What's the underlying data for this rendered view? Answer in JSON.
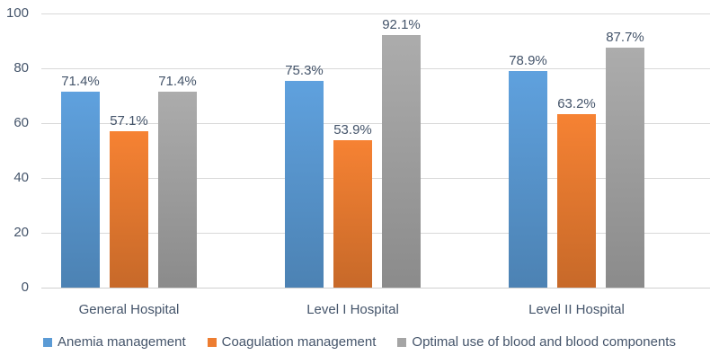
{
  "chart_data": {
    "type": "bar",
    "title": "",
    "categories": [
      "General Hospital",
      "Level I Hospital",
      "Level II Hospital"
    ],
    "series": [
      {
        "name": "Anemia management",
        "color": "#5B9BD5",
        "values": [
          71.4,
          75.3,
          78.9
        ],
        "labels": [
          "71.4%",
          "75.3%",
          "78.9%"
        ]
      },
      {
        "name": "Coagulation management",
        "color": "#ED7D31",
        "values": [
          57.1,
          53.9,
          63.2
        ],
        "labels": [
          "57.1%",
          "53.9%",
          "63.2%"
        ]
      },
      {
        "name": "Optimal use of blood and blood components",
        "color": "#A5A5A5",
        "values": [
          71.4,
          92.1,
          87.7
        ],
        "labels": [
          "71.4%",
          "92.1%",
          "87.7%"
        ]
      }
    ],
    "y_ticks": [
      0,
      20,
      40,
      60,
      80,
      100
    ],
    "ylim": [
      0,
      100
    ],
    "grid": true,
    "legend_position": "bottom",
    "text_color": "#44546A",
    "gridline_color": "#D9D9D9"
  }
}
